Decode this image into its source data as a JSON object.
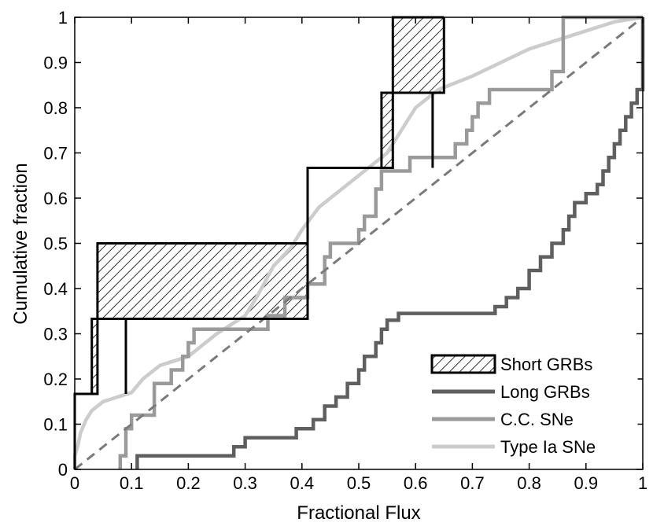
{
  "chart_data": {
    "type": "line",
    "title": "",
    "xlabel": "Fractional Flux",
    "ylabel": "Cumulative fraction",
    "xlim": [
      0,
      1
    ],
    "ylim": [
      0,
      1
    ],
    "xticks": [
      "0",
      "0.1",
      "0.2",
      "0.3",
      "0.4",
      "0.5",
      "0.6",
      "0.7",
      "0.8",
      "0.9",
      "1"
    ],
    "yticks": [
      "0",
      "0.1",
      "0.2",
      "0.3",
      "0.4",
      "0.5",
      "0.6",
      "0.7",
      "0.8",
      "0.9",
      "1"
    ],
    "grid": false,
    "legend_position": "bottom-right",
    "reference_line": {
      "x": [
        0,
        1
      ],
      "y": [
        0,
        1
      ],
      "style": "dashed",
      "color": "#7a7a7a"
    },
    "series": [
      {
        "name": "Short GRBs",
        "style": "hatched-band",
        "color": "#000000",
        "upper": [
          [
            0,
            0
          ],
          [
            0,
            0.167
          ],
          [
            0.04,
            0.167
          ],
          [
            0.04,
            0.5
          ],
          [
            0.33,
            0.5
          ],
          [
            0.33,
            0.5
          ],
          [
            0.41,
            0.5
          ],
          [
            0.41,
            0.667
          ],
          [
            0.56,
            0.667
          ],
          [
            0.56,
            1.0
          ],
          [
            0.65,
            1.0
          ]
        ],
        "lower": [
          [
            0,
            0
          ],
          [
            0,
            0.167
          ],
          [
            0.03,
            0.167
          ],
          [
            0.03,
            0.333
          ],
          [
            0.04,
            0.333
          ],
          [
            0.04,
            0.333
          ],
          [
            0.09,
            0.333
          ],
          [
            0.09,
            0.167
          ],
          [
            0.09,
            0.333
          ],
          [
            0.33,
            0.333
          ],
          [
            0.41,
            0.333
          ],
          [
            0.41,
            0.667
          ],
          [
            0.54,
            0.667
          ],
          [
            0.54,
            0.833
          ],
          [
            0.56,
            0.833
          ],
          [
            0.56,
            0.833
          ],
          [
            0.63,
            0.833
          ],
          [
            0.63,
            0.667
          ],
          [
            0.63,
            0.833
          ],
          [
            0.65,
            0.833
          ],
          [
            0.65,
            1.0
          ]
        ]
      },
      {
        "name": "Long GRBs",
        "color": "#5f5f5f",
        "points": [
          [
            0.11,
            0
          ],
          [
            0.11,
            0.03
          ],
          [
            0.28,
            0.03
          ],
          [
            0.28,
            0.05
          ],
          [
            0.3,
            0.05
          ],
          [
            0.3,
            0.07
          ],
          [
            0.39,
            0.07
          ],
          [
            0.39,
            0.09
          ],
          [
            0.42,
            0.09
          ],
          [
            0.42,
            0.11
          ],
          [
            0.44,
            0.11
          ],
          [
            0.44,
            0.14
          ],
          [
            0.46,
            0.14
          ],
          [
            0.46,
            0.16
          ],
          [
            0.48,
            0.16
          ],
          [
            0.48,
            0.19
          ],
          [
            0.5,
            0.19
          ],
          [
            0.5,
            0.22
          ],
          [
            0.51,
            0.22
          ],
          [
            0.51,
            0.25
          ],
          [
            0.53,
            0.25
          ],
          [
            0.53,
            0.28
          ],
          [
            0.54,
            0.28
          ],
          [
            0.54,
            0.31
          ],
          [
            0.55,
            0.31
          ],
          [
            0.55,
            0.33
          ],
          [
            0.57,
            0.33
          ],
          [
            0.57,
            0.345
          ],
          [
            0.74,
            0.345
          ],
          [
            0.74,
            0.36
          ],
          [
            0.76,
            0.36
          ],
          [
            0.76,
            0.38
          ],
          [
            0.78,
            0.38
          ],
          [
            0.78,
            0.4
          ],
          [
            0.8,
            0.4
          ],
          [
            0.8,
            0.44
          ],
          [
            0.82,
            0.44
          ],
          [
            0.82,
            0.47
          ],
          [
            0.84,
            0.47
          ],
          [
            0.84,
            0.5
          ],
          [
            0.86,
            0.5
          ],
          [
            0.86,
            0.53
          ],
          [
            0.87,
            0.53
          ],
          [
            0.87,
            0.56
          ],
          [
            0.88,
            0.56
          ],
          [
            0.88,
            0.59
          ],
          [
            0.9,
            0.59
          ],
          [
            0.9,
            0.61
          ],
          [
            0.92,
            0.61
          ],
          [
            0.92,
            0.63
          ],
          [
            0.93,
            0.63
          ],
          [
            0.93,
            0.66
          ],
          [
            0.94,
            0.66
          ],
          [
            0.94,
            0.69
          ],
          [
            0.95,
            0.69
          ],
          [
            0.95,
            0.72
          ],
          [
            0.96,
            0.72
          ],
          [
            0.96,
            0.75
          ],
          [
            0.97,
            0.75
          ],
          [
            0.97,
            0.78
          ],
          [
            0.98,
            0.78
          ],
          [
            0.98,
            0.81
          ],
          [
            0.99,
            0.81
          ],
          [
            0.99,
            0.84
          ],
          [
            1.0,
            0.84
          ],
          [
            1.0,
            1.0
          ]
        ]
      },
      {
        "name": "C.C. SNe",
        "color": "#9a9a9a",
        "points": [
          [
            0.08,
            0
          ],
          [
            0.08,
            0.03
          ],
          [
            0.09,
            0.03
          ],
          [
            0.09,
            0.09
          ],
          [
            0.1,
            0.09
          ],
          [
            0.1,
            0.12
          ],
          [
            0.14,
            0.12
          ],
          [
            0.14,
            0.19
          ],
          [
            0.17,
            0.19
          ],
          [
            0.17,
            0.22
          ],
          [
            0.19,
            0.22
          ],
          [
            0.19,
            0.25
          ],
          [
            0.2,
            0.25
          ],
          [
            0.2,
            0.28
          ],
          [
            0.21,
            0.28
          ],
          [
            0.21,
            0.31
          ],
          [
            0.34,
            0.31
          ],
          [
            0.34,
            0.34
          ],
          [
            0.37,
            0.34
          ],
          [
            0.37,
            0.38
          ],
          [
            0.41,
            0.38
          ],
          [
            0.41,
            0.41
          ],
          [
            0.44,
            0.41
          ],
          [
            0.44,
            0.47
          ],
          [
            0.45,
            0.47
          ],
          [
            0.45,
            0.5
          ],
          [
            0.5,
            0.5
          ],
          [
            0.5,
            0.53
          ],
          [
            0.51,
            0.53
          ],
          [
            0.51,
            0.56
          ],
          [
            0.53,
            0.56
          ],
          [
            0.53,
            0.62
          ],
          [
            0.54,
            0.62
          ],
          [
            0.54,
            0.66
          ],
          [
            0.59,
            0.66
          ],
          [
            0.59,
            0.69
          ],
          [
            0.67,
            0.69
          ],
          [
            0.67,
            0.72
          ],
          [
            0.69,
            0.72
          ],
          [
            0.69,
            0.75
          ],
          [
            0.7,
            0.75
          ],
          [
            0.7,
            0.78
          ],
          [
            0.71,
            0.78
          ],
          [
            0.71,
            0.81
          ],
          [
            0.73,
            0.81
          ],
          [
            0.73,
            0.84
          ],
          [
            0.84,
            0.84
          ],
          [
            0.84,
            0.88
          ],
          [
            0.86,
            0.88
          ],
          [
            0.86,
            1.0
          ],
          [
            1.0,
            1.0
          ]
        ]
      },
      {
        "name": "Type Ia SNe",
        "color": "#cccccc",
        "points": [
          [
            0,
            0
          ],
          [
            0,
            0.03
          ],
          [
            0.005,
            0.05
          ],
          [
            0.01,
            0.08
          ],
          [
            0.02,
            0.11
          ],
          [
            0.03,
            0.13
          ],
          [
            0.05,
            0.15
          ],
          [
            0.1,
            0.17
          ],
          [
            0.12,
            0.2
          ],
          [
            0.15,
            0.23
          ],
          [
            0.2,
            0.25
          ],
          [
            0.25,
            0.3
          ],
          [
            0.3,
            0.34
          ],
          [
            0.32,
            0.38
          ],
          [
            0.35,
            0.45
          ],
          [
            0.38,
            0.49
          ],
          [
            0.4,
            0.53
          ],
          [
            0.43,
            0.58
          ],
          [
            0.45,
            0.6
          ],
          [
            0.5,
            0.65
          ],
          [
            0.55,
            0.7
          ],
          [
            0.6,
            0.8
          ],
          [
            0.64,
            0.84
          ],
          [
            0.7,
            0.87
          ],
          [
            0.75,
            0.9
          ],
          [
            0.8,
            0.93
          ],
          [
            0.85,
            0.95
          ],
          [
            0.9,
            0.97
          ],
          [
            0.95,
            0.99
          ],
          [
            1.0,
            1.0
          ]
        ]
      }
    ]
  }
}
